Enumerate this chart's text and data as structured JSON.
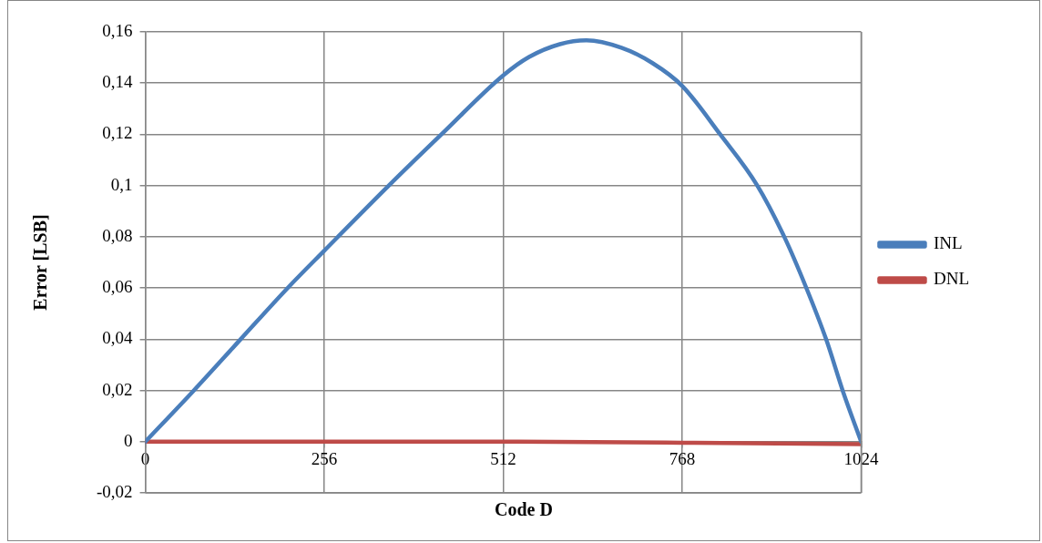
{
  "chart_data": {
    "type": "line",
    "xlabel": "Code D",
    "ylabel": "Error [LSB]",
    "xlim": [
      0,
      1024
    ],
    "xticks": [
      0,
      256,
      512,
      768,
      1024
    ],
    "ylim": [
      -0.02,
      0.16
    ],
    "yticks": [
      {
        "value": -0.02,
        "label": "-0,02"
      },
      0,
      {
        "value": 0.02,
        "label": "0,02"
      },
      {
        "value": 0.04,
        "label": "0,04"
      },
      {
        "value": 0.06,
        "label": "0,06"
      },
      {
        "value": 0.08,
        "label": "0,08"
      },
      {
        "value": 0.1,
        "label": "0,1"
      },
      {
        "value": 0.12,
        "label": "0,12"
      },
      {
        "value": 0.14,
        "label": "0,14"
      },
      {
        "value": 0.16,
        "label": "0,16"
      }
    ],
    "grid": true,
    "legend": "right",
    "marker": "none",
    "line_style": "solid",
    "series": [
      {
        "name": "INL",
        "color": "#4a7ebb",
        "x": [
          0,
          68,
          136,
          205,
          256,
          349,
          424,
          512,
          549,
          593,
          631,
          681,
          725,
          768,
          822,
          875,
          914,
          945,
          974,
          998,
          1024
        ],
        "values": [
          0,
          0.0196,
          0.0399,
          0.0604,
          0.0746,
          0.1002,
          0.1201,
          0.143,
          0.1502,
          0.1552,
          0.1567,
          0.1538,
          0.1479,
          0.1389,
          0.1201,
          0.1002,
          0.08,
          0.0604,
          0.0399,
          0.0196,
          0
        ]
      },
      {
        "name": "DNL",
        "color": "#be4b48",
        "x": [
          0,
          512,
          768,
          1024
        ],
        "values": [
          0,
          0,
          -0.0004,
          -0.001
        ]
      }
    ]
  }
}
